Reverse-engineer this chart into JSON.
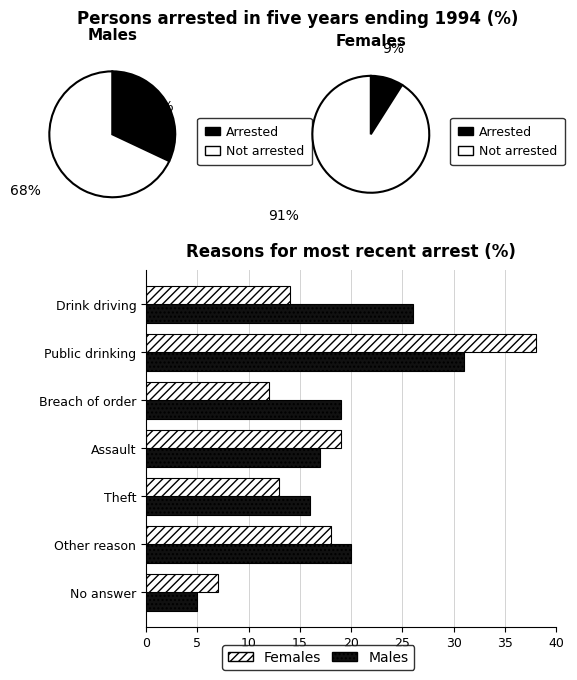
{
  "pie_title": "Persons arrested in five years ending 1994 (%)",
  "pie_male_title": "Males",
  "pie_female_title": "Females",
  "male_arrested": 32,
  "male_not_arrested": 68,
  "female_arrested": 9,
  "female_not_arrested": 91,
  "pie_colors": [
    "#000000",
    "#ffffff"
  ],
  "pie_legend_labels": [
    "Arrested",
    "Not arrested"
  ],
  "bar_title": "Reasons for most recent arrest (%)",
  "categories": [
    "Drink driving",
    "Public drinking",
    "Breach of order",
    "Assault",
    "Theft",
    "Other reason",
    "No answer"
  ],
  "males_values": [
    26,
    31,
    19,
    17,
    16,
    20,
    5
  ],
  "females_values": [
    14,
    38,
    12,
    19,
    13,
    18,
    7
  ],
  "bar_xlim": [
    0,
    40
  ],
  "bar_xticks": [
    0,
    5,
    10,
    15,
    20,
    25,
    30,
    35,
    40
  ],
  "bar_legend_labels": [
    "Females",
    "Males"
  ],
  "background_color": "#ffffff"
}
